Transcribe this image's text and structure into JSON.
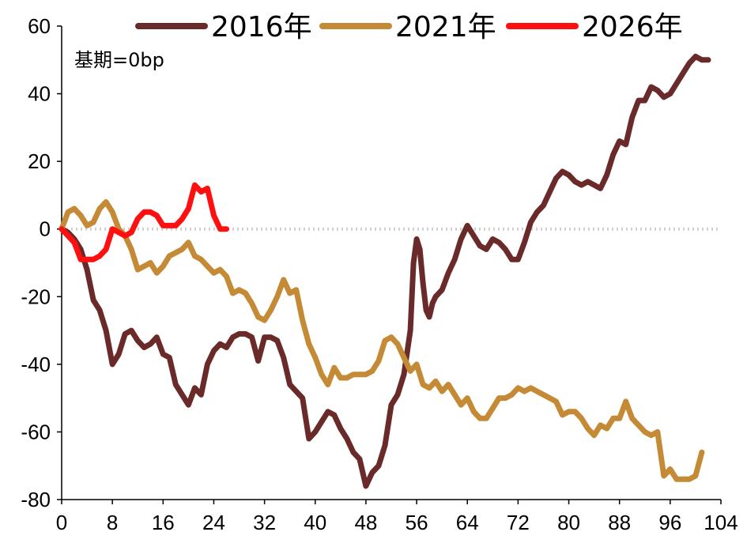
{
  "chart_data": {
    "type": "line",
    "title": "",
    "annotation": "基期=0bp",
    "xlabel": "",
    "ylabel": "",
    "xlim": [
      0,
      104
    ],
    "ylim": [
      -80,
      60
    ],
    "x_ticks": [
      0,
      8,
      16,
      24,
      32,
      40,
      48,
      56,
      64,
      72,
      80,
      88,
      96,
      104
    ],
    "y_ticks": [
      60,
      40,
      20,
      0,
      -20,
      -40,
      -60,
      -80
    ],
    "reference_line": {
      "y": 0,
      "style": "dotted",
      "color": "#d0d0d0"
    },
    "legend_position": "top",
    "grid": false,
    "series": [
      {
        "name": "2016年",
        "color": "#6b2a2a",
        "points": [
          [
            0,
            0
          ],
          [
            1,
            -1
          ],
          [
            2,
            -3
          ],
          [
            3,
            -6
          ],
          [
            4,
            -12
          ],
          [
            5,
            -21
          ],
          [
            6,
            -24
          ],
          [
            7,
            -30
          ],
          [
            8,
            -40
          ],
          [
            9,
            -37
          ],
          [
            10,
            -31
          ],
          [
            11,
            -30
          ],
          [
            12,
            -33
          ],
          [
            13,
            -35
          ],
          [
            14,
            -34
          ],
          [
            15,
            -32
          ],
          [
            16,
            -37
          ],
          [
            17,
            -38
          ],
          [
            18,
            -46
          ],
          [
            19,
            -49
          ],
          [
            20,
            -52
          ],
          [
            21,
            -47
          ],
          [
            22,
            -49
          ],
          [
            23,
            -40
          ],
          [
            24,
            -36
          ],
          [
            25,
            -34
          ],
          [
            26,
            -35
          ],
          [
            27,
            -32
          ],
          [
            28,
            -31
          ],
          [
            29,
            -31
          ],
          [
            30,
            -32
          ],
          [
            31,
            -39
          ],
          [
            32,
            -32
          ],
          [
            33,
            -32
          ],
          [
            34,
            -33
          ],
          [
            35,
            -38
          ],
          [
            36,
            -46
          ],
          [
            37,
            -48
          ],
          [
            38,
            -50
          ],
          [
            39,
            -62
          ],
          [
            40,
            -60
          ],
          [
            41,
            -57
          ],
          [
            42,
            -54
          ],
          [
            43,
            -55
          ],
          [
            44,
            -59
          ],
          [
            45,
            -62
          ],
          [
            46,
            -66
          ],
          [
            47,
            -68
          ],
          [
            48,
            -76
          ],
          [
            49,
            -72
          ],
          [
            50,
            -70
          ],
          [
            51,
            -64
          ],
          [
            52,
            -52
          ],
          [
            53,
            -49
          ],
          [
            54,
            -43
          ],
          [
            55,
            -30
          ],
          [
            55.5,
            -10
          ],
          [
            56,
            -3
          ],
          [
            56.5,
            -6
          ],
          [
            57,
            -16
          ],
          [
            57.5,
            -24
          ],
          [
            58,
            -26
          ],
          [
            58.5,
            -22
          ],
          [
            59,
            -20
          ],
          [
            60,
            -18
          ],
          [
            61,
            -13
          ],
          [
            62,
            -9
          ],
          [
            63,
            -3
          ],
          [
            64,
            1
          ],
          [
            65,
            -2
          ],
          [
            66,
            -5
          ],
          [
            67,
            -6
          ],
          [
            68,
            -3
          ],
          [
            69,
            -4
          ],
          [
            70,
            -6
          ],
          [
            71,
            -9
          ],
          [
            72,
            -9
          ],
          [
            73,
            -4
          ],
          [
            74,
            2
          ],
          [
            75,
            5
          ],
          [
            76,
            7
          ],
          [
            77,
            11
          ],
          [
            78,
            15
          ],
          [
            79,
            17
          ],
          [
            80,
            16
          ],
          [
            81,
            14
          ],
          [
            82,
            13
          ],
          [
            83,
            14
          ],
          [
            84,
            13
          ],
          [
            85,
            12
          ],
          [
            86,
            16
          ],
          [
            87,
            22
          ],
          [
            88,
            26
          ],
          [
            89,
            25
          ],
          [
            90,
            33
          ],
          [
            91,
            38
          ],
          [
            92,
            38
          ],
          [
            93,
            42
          ],
          [
            94,
            41
          ],
          [
            95,
            39
          ],
          [
            96,
            40
          ],
          [
            97,
            43
          ],
          [
            98,
            46
          ],
          [
            99,
            49
          ],
          [
            100,
            51
          ],
          [
            101,
            50
          ],
          [
            102,
            50
          ]
        ]
      },
      {
        "name": "2021年",
        "color": "#c58a35",
        "points": [
          [
            0,
            0
          ],
          [
            1,
            5
          ],
          [
            2,
            6
          ],
          [
            3,
            4
          ],
          [
            4,
            1
          ],
          [
            5,
            2
          ],
          [
            6,
            6
          ],
          [
            7,
            8
          ],
          [
            8,
            5
          ],
          [
            9,
            0
          ],
          [
            10,
            -2
          ],
          [
            11,
            -6
          ],
          [
            12,
            -12
          ],
          [
            13,
            -11
          ],
          [
            14,
            -10
          ],
          [
            15,
            -13
          ],
          [
            16,
            -11
          ],
          [
            17,
            -8
          ],
          [
            18,
            -7
          ],
          [
            19,
            -6
          ],
          [
            20,
            -4
          ],
          [
            21,
            -8
          ],
          [
            22,
            -9
          ],
          [
            23,
            -11
          ],
          [
            24,
            -13
          ],
          [
            25,
            -12
          ],
          [
            26,
            -14
          ],
          [
            27,
            -19
          ],
          [
            28,
            -18
          ],
          [
            29,
            -19
          ],
          [
            30,
            -22
          ],
          [
            31,
            -26
          ],
          [
            32,
            -27
          ],
          [
            33,
            -24
          ],
          [
            34,
            -20
          ],
          [
            35,
            -15
          ],
          [
            36,
            -19
          ],
          [
            37,
            -18
          ],
          [
            38,
            -27
          ],
          [
            39,
            -34
          ],
          [
            40,
            -38
          ],
          [
            41,
            -43
          ],
          [
            42,
            -46
          ],
          [
            43,
            -41
          ],
          [
            44,
            -44
          ],
          [
            45,
            -44
          ],
          [
            46,
            -43
          ],
          [
            47,
            -43
          ],
          [
            48,
            -43
          ],
          [
            49,
            -42
          ],
          [
            50,
            -39
          ],
          [
            51,
            -33
          ],
          [
            52,
            -32
          ],
          [
            53,
            -34
          ],
          [
            54,
            -38
          ],
          [
            55,
            -42
          ],
          [
            56,
            -40
          ],
          [
            57,
            -46
          ],
          [
            58,
            -47
          ],
          [
            59,
            -45
          ],
          [
            60,
            -48
          ],
          [
            61,
            -46
          ],
          [
            62,
            -49
          ],
          [
            63,
            -52
          ],
          [
            64,
            -50
          ],
          [
            65,
            -54
          ],
          [
            66,
            -56
          ],
          [
            67,
            -56
          ],
          [
            68,
            -53
          ],
          [
            69,
            -50
          ],
          [
            70,
            -50
          ],
          [
            71,
            -49
          ],
          [
            72,
            -47
          ],
          [
            73,
            -48
          ],
          [
            74,
            -47
          ],
          [
            75,
            -48
          ],
          [
            76,
            -49
          ],
          [
            77,
            -50
          ],
          [
            78,
            -51
          ],
          [
            79,
            -55
          ],
          [
            80,
            -54
          ],
          [
            81,
            -54
          ],
          [
            82,
            -56
          ],
          [
            83,
            -59
          ],
          [
            84,
            -61
          ],
          [
            85,
            -58
          ],
          [
            86,
            -59
          ],
          [
            87,
            -56
          ],
          [
            88,
            -56
          ],
          [
            89,
            -51
          ],
          [
            90,
            -56
          ],
          [
            91,
            -58
          ],
          [
            92,
            -60
          ],
          [
            93,
            -61
          ],
          [
            94,
            -60
          ],
          [
            95,
            -73
          ],
          [
            96,
            -71
          ],
          [
            97,
            -74
          ],
          [
            98,
            -74
          ],
          [
            99,
            -74
          ],
          [
            100,
            -73
          ],
          [
            101,
            -66
          ]
        ]
      },
      {
        "name": "2026年",
        "color": "#ff1010",
        "points": [
          [
            0,
            0
          ],
          [
            1,
            -2
          ],
          [
            2,
            -4
          ],
          [
            3,
            -9
          ],
          [
            4,
            -9
          ],
          [
            5,
            -9
          ],
          [
            6,
            -8
          ],
          [
            7,
            -6
          ],
          [
            8,
            0
          ],
          [
            9,
            -1
          ],
          [
            10,
            -2
          ],
          [
            11,
            -1
          ],
          [
            12,
            3
          ],
          [
            13,
            5
          ],
          [
            14,
            5
          ],
          [
            15,
            4
          ],
          [
            16,
            1
          ],
          [
            17,
            1
          ],
          [
            18,
            1
          ],
          [
            19,
            3
          ],
          [
            20,
            6
          ],
          [
            21,
            13
          ],
          [
            22,
            11
          ],
          [
            23,
            12
          ],
          [
            24,
            4
          ],
          [
            25,
            0
          ],
          [
            26,
            0
          ]
        ]
      }
    ]
  }
}
